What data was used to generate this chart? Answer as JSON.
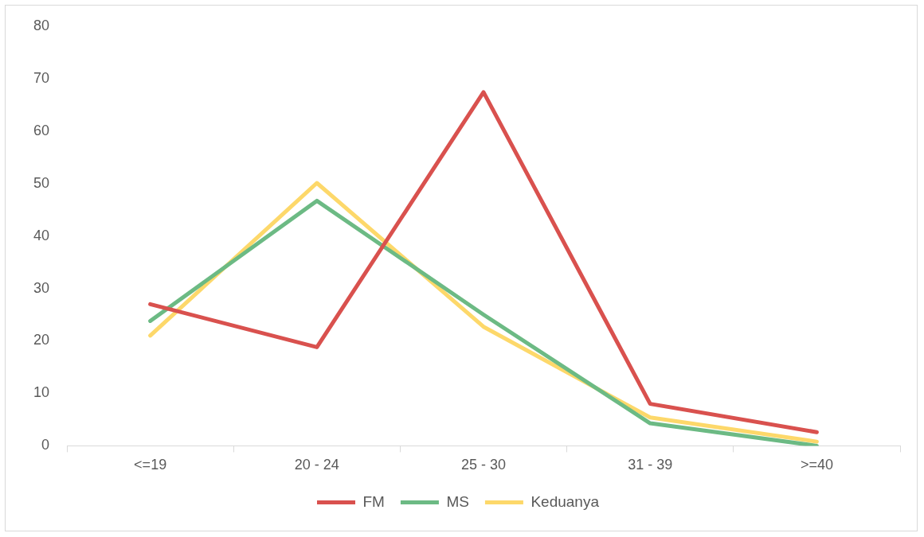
{
  "chart_data": {
    "type": "line",
    "categories": [
      "<=19",
      "20 - 24",
      "25 - 30",
      "31 - 39",
      ">=40"
    ],
    "series": [
      {
        "name": "FM",
        "color": "#d9514e",
        "values": [
          27,
          18.8,
          67.4,
          8,
          2.6
        ]
      },
      {
        "name": "MS",
        "color": "#6cba84",
        "values": [
          23.8,
          46.7,
          25,
          4.3,
          0
        ]
      },
      {
        "name": "Keduanya",
        "color": "#fdd86a",
        "values": [
          21,
          50.1,
          22.7,
          5.4,
          0.8
        ]
      }
    ],
    "ylim": [
      0,
      80
    ],
    "yticks": [
      0,
      10,
      20,
      30,
      40,
      50,
      60,
      70,
      80
    ],
    "grid": false,
    "legend": "bottom",
    "marker": "none",
    "line_style": "solid"
  }
}
